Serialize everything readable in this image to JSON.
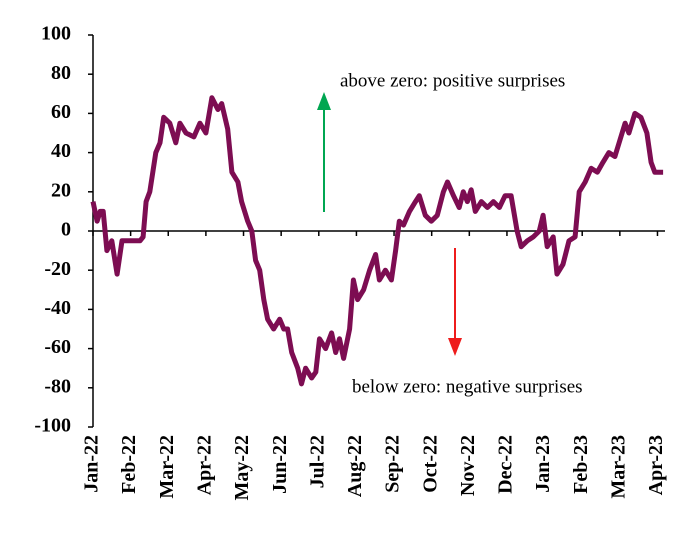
{
  "chart_data": {
    "type": "line",
    "annotations": [
      "above zero: positive surprises",
      "below zero: negative surprises"
    ],
    "xlim": [
      0,
      15.2
    ],
    "xticks": [
      {
        "value": 0,
        "label": "Jan-22"
      },
      {
        "value": 1,
        "label": "Feb-22"
      },
      {
        "value": 2,
        "label": "Mar-22"
      },
      {
        "value": 3,
        "label": "Apr-22"
      },
      {
        "value": 4,
        "label": "May-22"
      },
      {
        "value": 5,
        "label": "Jun-22"
      },
      {
        "value": 6,
        "label": "Jul-22"
      },
      {
        "value": 7,
        "label": "Aug-22"
      },
      {
        "value": 8,
        "label": "Sep-22"
      },
      {
        "value": 9,
        "label": "Oct-22"
      },
      {
        "value": 10,
        "label": "Nov-22"
      },
      {
        "value": 11,
        "label": "Dec-22"
      },
      {
        "value": 12,
        "label": "Jan-23"
      },
      {
        "value": 13,
        "label": "Feb-23"
      },
      {
        "value": 14,
        "label": "Mar-23"
      },
      {
        "value": 15,
        "label": "Apr-23"
      }
    ],
    "ylim": [
      -100,
      100
    ],
    "yticks": [
      -100,
      -80,
      -60,
      -40,
      -20,
      0,
      20,
      40,
      60,
      80,
      100
    ],
    "series": [
      {
        "color": "#7d0d52",
        "x": [
          0,
          0.11,
          0.19,
          0.27,
          0.37,
          0.5,
          0.64,
          0.77,
          0.9,
          1.06,
          1.25,
          1.33,
          1.41,
          1.51,
          1.59,
          1.67,
          1.78,
          1.88,
          2.04,
          2.2,
          2.31,
          2.47,
          2.68,
          2.84,
          3.0,
          3.16,
          3.32,
          3.42,
          3.58,
          3.69,
          3.85,
          3.95,
          4.11,
          4.22,
          4.32,
          4.43,
          4.54,
          4.64,
          4.8,
          4.96,
          5.07,
          5.17,
          5.28,
          5.44,
          5.54,
          5.65,
          5.81,
          5.92,
          6.02,
          6.18,
          6.34,
          6.45,
          6.55,
          6.66,
          6.82,
          6.92,
          7.03,
          7.19,
          7.35,
          7.51,
          7.61,
          7.77,
          7.93,
          8.04,
          8.14,
          8.25,
          8.41,
          8.57,
          8.67,
          8.83,
          8.99,
          9.15,
          9.31,
          9.42,
          9.58,
          9.73,
          9.84,
          9.95,
          10.05,
          10.16,
          10.32,
          10.48,
          10.64,
          10.8,
          10.95,
          11.11,
          11.27,
          11.38,
          11.54,
          11.7,
          11.86,
          11.96,
          12.07,
          12.23,
          12.33,
          12.49,
          12.65,
          12.81,
          12.92,
          13.08,
          13.24,
          13.4,
          13.55,
          13.71,
          13.87,
          13.98,
          14.14,
          14.24,
          14.4,
          14.56,
          14.72,
          14.83,
          14.93,
          15.15
        ],
        "values": [
          15,
          5,
          10,
          10,
          -10,
          -5,
          -22,
          -5,
          -5,
          -5,
          -5,
          -3,
          15,
          20,
          30,
          40,
          45,
          58,
          55,
          45,
          55,
          50,
          48,
          55,
          50,
          68,
          62,
          65,
          52,
          30,
          25,
          15,
          5,
          0,
          -15,
          -20,
          -35,
          -45,
          -50,
          -45,
          -50,
          -50,
          -62,
          -70,
          -78,
          -70,
          -75,
          -72,
          -55,
          -60,
          -52,
          -62,
          -55,
          -65,
          -50,
          -25,
          -35,
          -30,
          -20,
          -12,
          -25,
          -20,
          -25,
          -10,
          5,
          3,
          10,
          15,
          18,
          8,
          5,
          8,
          20,
          25,
          18,
          12,
          20,
          15,
          21,
          10,
          15,
          12,
          15,
          12,
          18,
          18,
          0,
          -8,
          -5,
          -3,
          0,
          8,
          -8,
          -3,
          -22,
          -17,
          -5,
          -3,
          20,
          25,
          32,
          30,
          35,
          40,
          38,
          45,
          55,
          50,
          60,
          58,
          50,
          35,
          30,
          30
        ]
      }
    ]
  }
}
